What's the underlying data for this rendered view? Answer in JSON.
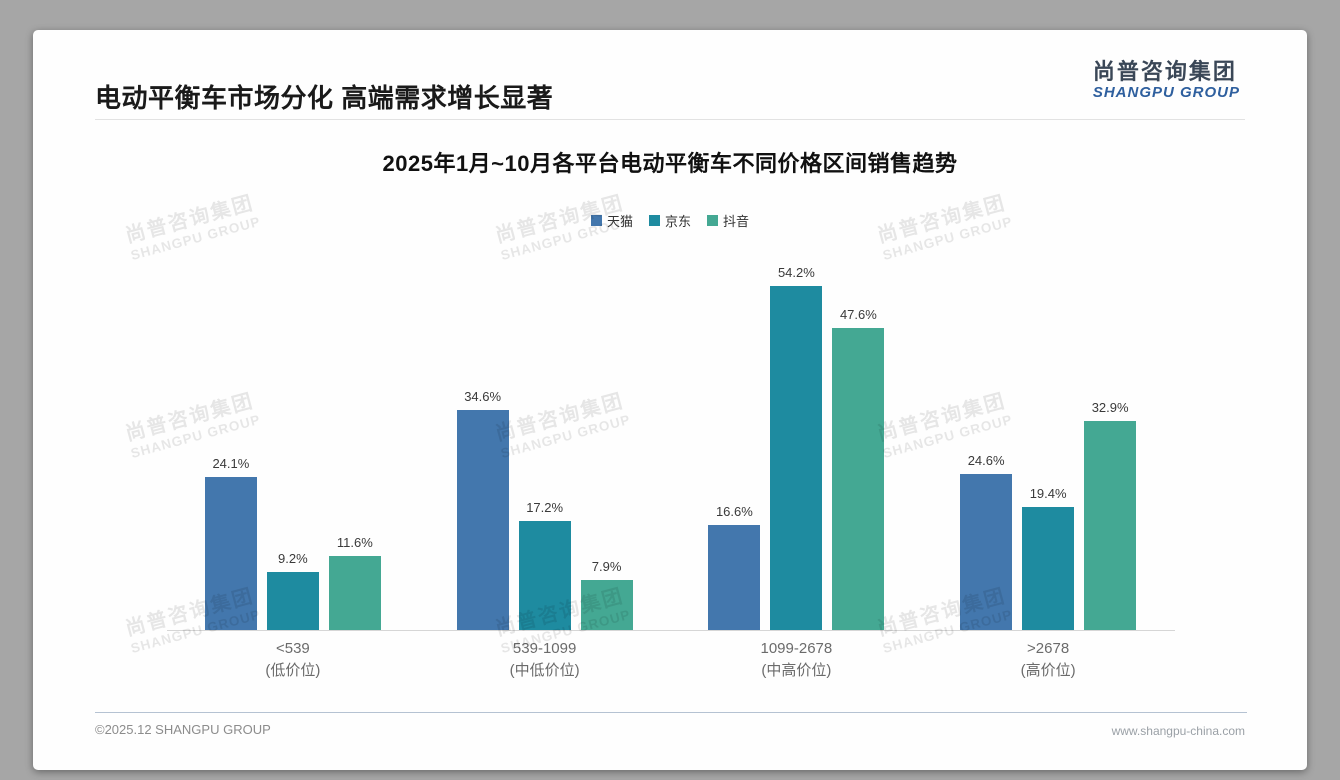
{
  "slide": {
    "title": "电动平衡车市场分化 高端需求增长显著",
    "logo": {
      "cn": "尚普咨询集团",
      "en": "SHANGPU GROUP"
    },
    "watermark": {
      "cn": "尚普咨询集团",
      "en": "SHANGPU GROUP"
    },
    "footer": {
      "copyright": "©2025.12 SHANGPU GROUP",
      "website": "www.shangpu-china.com"
    }
  },
  "chart_data": {
    "type": "bar",
    "title": "2025年1月~10月各平台电动平衡车不同价格区间销售趋势",
    "categories": [
      {
        "range": "<539",
        "tier": "(低价位)"
      },
      {
        "range": "539-1099",
        "tier": "(中低价位)"
      },
      {
        "range": "1099-2678",
        "tier": "(中高价位)"
      },
      {
        "range": ">2678",
        "tier": "(高价位)"
      }
    ],
    "series": [
      {
        "name": "天猫",
        "color": "#4377ad",
        "values": [
          24.1,
          34.6,
          16.6,
          24.6
        ]
      },
      {
        "name": "京东",
        "color": "#1e8ba0",
        "values": [
          9.2,
          17.2,
          54.2,
          19.4
        ]
      },
      {
        "name": "抖音",
        "color": "#44a893",
        "values": [
          11.6,
          7.9,
          47.6,
          32.9
        ]
      }
    ],
    "value_suffix": "%",
    "ylim": [
      0,
      60
    ],
    "legend_position": "top",
    "grid": false,
    "xlabel": "",
    "ylabel": ""
  }
}
